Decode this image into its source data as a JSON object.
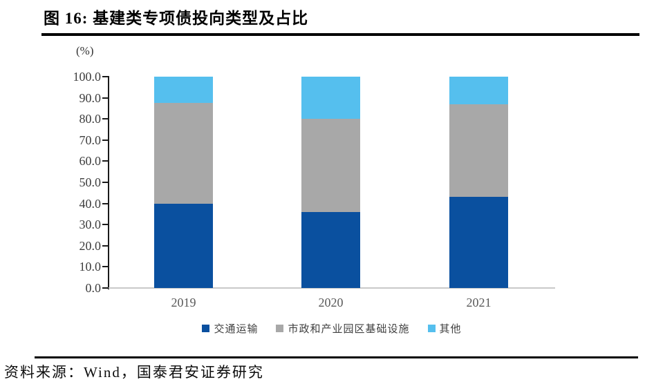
{
  "figure": {
    "title": "图 16: 基建类专项债投向类型及占比",
    "source_note": "资料来源：Wind，国泰君安证券研究"
  },
  "chart_data": {
    "type": "bar",
    "stacked": true,
    "title": "基建类专项债投向类型及占比",
    "unit_label": "(%)",
    "categories": [
      "2019",
      "2020",
      "2021"
    ],
    "series": [
      {
        "name": "交通运输",
        "color": "#0a509f",
        "values": [
          40.0,
          36.0,
          43.0
        ]
      },
      {
        "name": "市政和产业园区基础设施",
        "color": "#a8a8a8",
        "values": [
          47.5,
          44.0,
          44.0
        ]
      },
      {
        "name": "其他",
        "color": "#55bfee",
        "values": [
          12.5,
          20.0,
          13.0
        ]
      }
    ],
    "ylim": [
      0,
      100
    ],
    "ytick_step": 10,
    "ytick_labels": [
      "0.0",
      "10.0",
      "20.0",
      "30.0",
      "40.0",
      "50.0",
      "60.0",
      "70.0",
      "80.0",
      "90.0",
      "100.0"
    ],
    "grid": false,
    "legend_position": "bottom"
  }
}
